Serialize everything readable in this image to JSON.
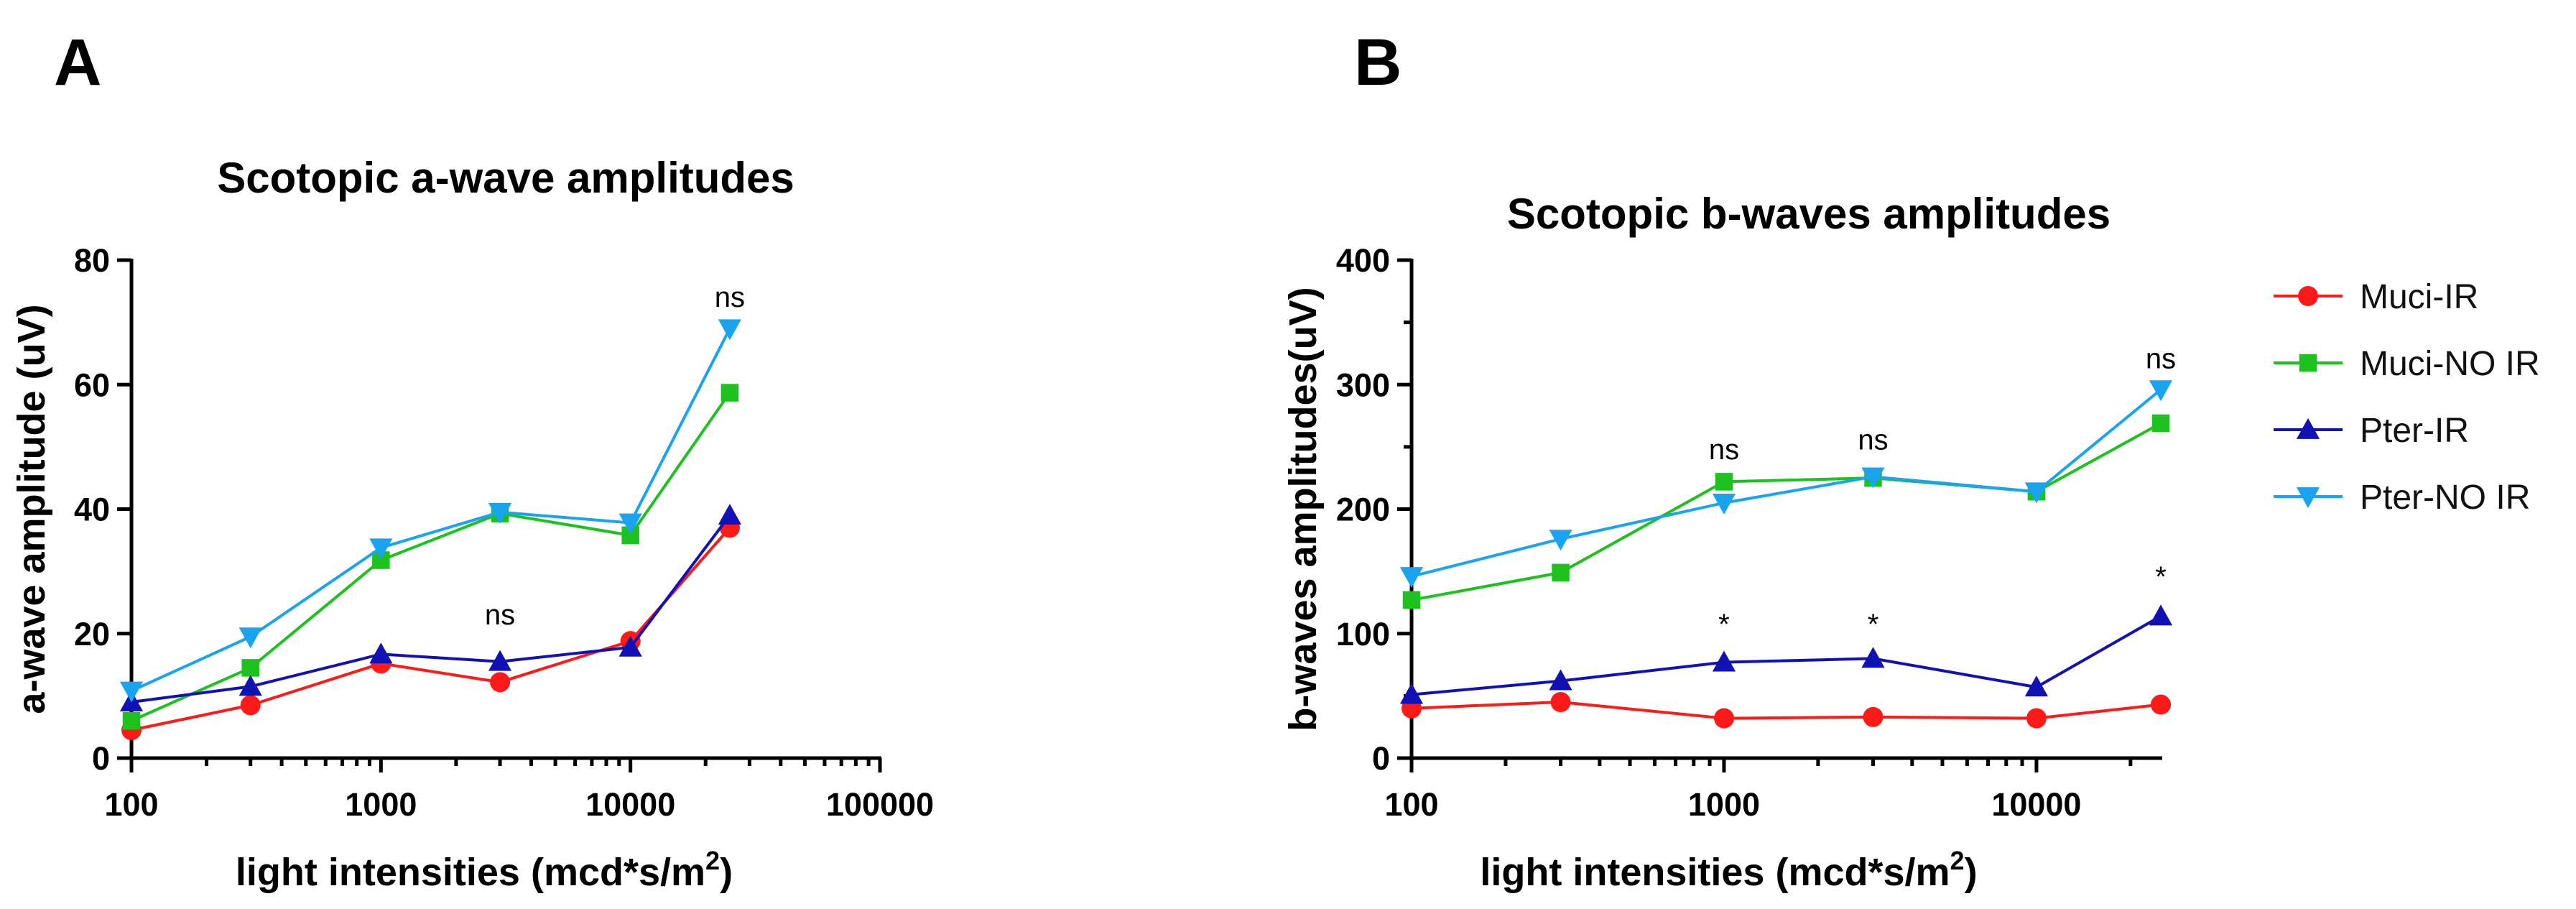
{
  "panels": {
    "a": "A",
    "b": "B"
  },
  "chart_data": [
    {
      "type": "line",
      "title": "Scotopic a-wave amplitudes",
      "xlabel": "light intensities (mcd*s/m",
      "xlabel_sup": "2",
      "xlabel_close": ")",
      "ylabel": "a-wave amplitude (uV)",
      "xscale": "log",
      "xlim": [
        100,
        100000
      ],
      "ylim": [
        0,
        80
      ],
      "xticks": [
        100,
        1000,
        10000,
        100000
      ],
      "xtick_labels": [
        "100",
        "1000",
        "10000",
        "100000"
      ],
      "yticks": [
        0,
        20,
        40,
        60,
        80
      ],
      "ytick_labels": [
        "0",
        "20",
        "40",
        "60",
        "80"
      ],
      "x": [
        100,
        300,
        1000,
        3000,
        10000,
        25000
      ],
      "series": [
        {
          "name": "Muci-IR",
          "color": "#ff1a1a",
          "marker": "circle",
          "values": [
            4.5,
            8.5,
            15.2,
            12.2,
            18.8,
            37
          ]
        },
        {
          "name": "Muci-NO IR",
          "color": "#1ec21e",
          "marker": "square",
          "values": [
            6,
            14.5,
            31.8,
            39.3,
            35.8,
            58.7
          ]
        },
        {
          "name": "Pter-IR",
          "color": "#1212b4",
          "marker": "triangle-up",
          "values": [
            9,
            11.5,
            16.7,
            15.5,
            17.8,
            39
          ]
        },
        {
          "name": "Pter-NO IR",
          "color": "#1aa3ef",
          "marker": "triangle-down",
          "values": [
            10.8,
            19.5,
            33.8,
            39.5,
            37.8,
            69
          ]
        }
      ],
      "annotations": [
        {
          "text": "ns",
          "x": 3000,
          "y": 21.5
        },
        {
          "text": "ns",
          "x": 25000,
          "y": 72.5
        }
      ]
    },
    {
      "type": "line",
      "title": "Scotopic b-waves amplitudes",
      "xlabel": "light intensities (mcd*s/m",
      "xlabel_sup": "2",
      "xlabel_close": ")",
      "ylabel": "b-waves amplitudes(uV)",
      "xscale": "log",
      "xlim": [
        100,
        25000
      ],
      "ylim": [
        0,
        400
      ],
      "xticks": [
        100,
        1000,
        10000
      ],
      "xtick_labels": [
        "100",
        "1000",
        "10000"
      ],
      "yticks": [
        0,
        100,
        200,
        300,
        400
      ],
      "ytick_labels": [
        "0",
        "100",
        "200",
        "300",
        "400"
      ],
      "x": [
        100,
        300,
        1000,
        3000,
        10000,
        25000
      ],
      "series": [
        {
          "name": "Muci-IR",
          "color": "#ff1a1a",
          "marker": "circle",
          "values": [
            40,
            45,
            32,
            33,
            32,
            43
          ]
        },
        {
          "name": "Muci-NO IR",
          "color": "#1ec21e",
          "marker": "square",
          "values": [
            127,
            149,
            222,
            225,
            214,
            269
          ]
        },
        {
          "name": "Pter-IR",
          "color": "#1212b4",
          "marker": "triangle-up",
          "values": [
            51,
            62,
            77,
            80,
            57,
            114
          ]
        },
        {
          "name": "Pter-NO IR",
          "color": "#1aa3ef",
          "marker": "triangle-down",
          "values": [
            146,
            176,
            205,
            226,
            214,
            296
          ]
        }
      ],
      "annotations": [
        {
          "text": "ns",
          "x": 1000,
          "y": 240
        },
        {
          "text": "ns",
          "x": 3000,
          "y": 248
        },
        {
          "text": "ns",
          "x": 25000,
          "y": 313
        },
        {
          "text": "*",
          "x": 1000,
          "y": 100
        },
        {
          "text": "*",
          "x": 3000,
          "y": 100
        },
        {
          "text": "*",
          "x": 25000,
          "y": 138
        }
      ]
    }
  ],
  "legend": {
    "position": "right",
    "items": [
      {
        "label": "Muci-IR",
        "color": "#ff1a1a",
        "marker": "circle"
      },
      {
        "label": "Muci-NO IR",
        "color": "#1ec21e",
        "marker": "square"
      },
      {
        "label": "Pter-IR",
        "color": "#1212b4",
        "marker": "triangle-up"
      },
      {
        "label": "Pter-NO IR",
        "color": "#1aa3ef",
        "marker": "triangle-down"
      }
    ]
  }
}
